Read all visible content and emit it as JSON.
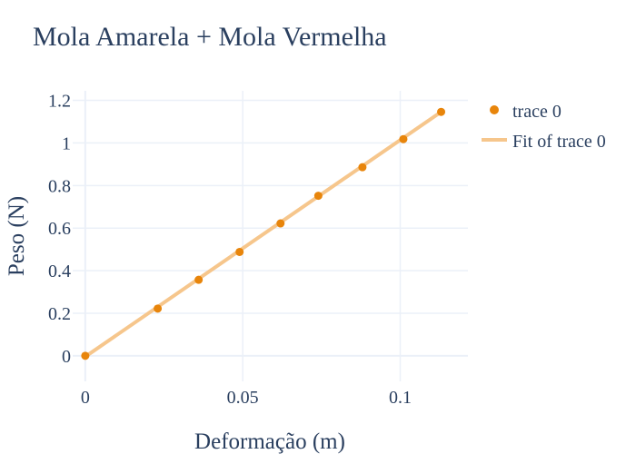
{
  "chart_data": {
    "type": "scatter",
    "title": "Mola Amarela + Mola Vermelha",
    "xlabel": "Deformação (m)",
    "ylabel": "Peso (N)",
    "xlim": [
      -0.004,
      0.1215
    ],
    "ylim": [
      -0.12,
      1.245
    ],
    "x_ticks": [
      0,
      0.05,
      0.1
    ],
    "x_tick_labels": [
      "0",
      "0.05",
      "0.1"
    ],
    "y_ticks": [
      0,
      0.2,
      0.4,
      0.6,
      0.8,
      1,
      1.2
    ],
    "y_tick_labels": [
      "0",
      "0.2",
      "0.4",
      "0.6",
      "0.8",
      "1",
      "1.2"
    ],
    "grid": true,
    "legend_position": "top-right",
    "series": [
      {
        "name": "trace 0",
        "kind": "markers",
        "color": "#e8850b",
        "x": [
          0,
          0.023,
          0.036,
          0.049,
          0.062,
          0.074,
          0.088,
          0.101,
          0.113
        ],
        "y": [
          0,
          0.222,
          0.357,
          0.488,
          0.622,
          0.752,
          0.886,
          1.018,
          1.146
        ]
      },
      {
        "name": "Fit of trace 0",
        "kind": "line",
        "color": "#f6c68c",
        "x": [
          0,
          0.113
        ],
        "y": [
          -0.004,
          1.146
        ]
      }
    ]
  },
  "colors": {
    "grid": "#ebf0f8",
    "text": "#2a3f5f",
    "background": "#ffffff"
  }
}
